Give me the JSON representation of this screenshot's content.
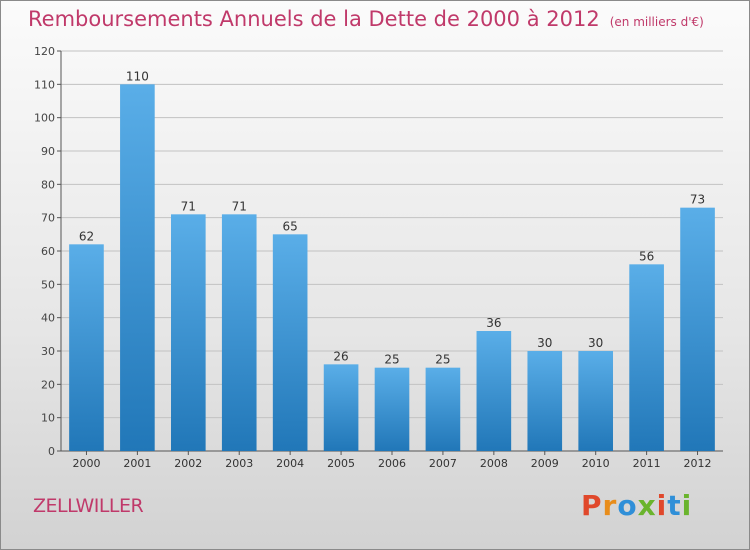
{
  "header": {
    "title": "Remboursements Annuels de la Dette de 2000 à 2012",
    "subtitle": "(en milliers d'€)"
  },
  "footer": {
    "town": "ZELLWILLER",
    "brand": "Proxiti"
  },
  "colors": {
    "bar_light": "#5aaee8",
    "bar_dark": "#2177b8",
    "title": "#c0396a",
    "brand_letters": [
      "#e0482b",
      "#e88d1b",
      "#2f8fd8",
      "#6ab42d",
      "#e0482b",
      "#2f8fd8",
      "#6ab42d"
    ]
  },
  "chart_data": {
    "type": "bar",
    "categories": [
      "2000",
      "2001",
      "2002",
      "2003",
      "2004",
      "2005",
      "2006",
      "2007",
      "2008",
      "2009",
      "2010",
      "2011",
      "2012"
    ],
    "values": [
      62,
      110,
      71,
      71,
      65,
      26,
      25,
      25,
      36,
      30,
      30,
      56,
      73
    ],
    "ylim": [
      0,
      120
    ],
    "yticks": [
      0,
      10,
      20,
      30,
      40,
      50,
      60,
      70,
      80,
      90,
      100,
      110,
      120
    ],
    "grid": true,
    "data_labels": true
  }
}
